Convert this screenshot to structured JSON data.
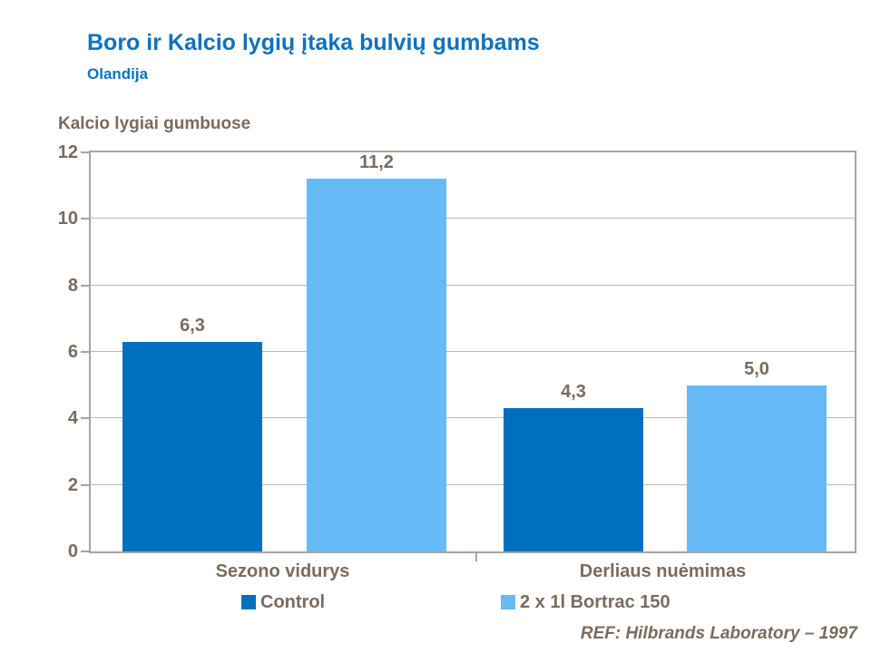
{
  "header": {
    "title": "Boro ir Kalcio lygių įtaka bulvių gumbams",
    "subtitle": "Olandija"
  },
  "chart_data": {
    "type": "bar",
    "title": "Kalcio lygiai gumbuose",
    "categories": [
      "Sezono vidurys",
      "Derliaus nuėmimas"
    ],
    "series": [
      {
        "name": "Control",
        "color": "#0070BE",
        "values": [
          6.3,
          4.3
        ],
        "labels": [
          "6,3",
          "4,3"
        ]
      },
      {
        "name": "2 x 1l Bortrac 150",
        "color": "#66BBF7",
        "values": [
          11.2,
          5.0
        ],
        "labels": [
          "11,2",
          "5,0"
        ]
      }
    ],
    "ylim": [
      0,
      12
    ],
    "yticks": [
      0,
      2,
      4,
      6,
      8,
      10,
      12
    ],
    "grid": true,
    "legend_position": "bottom",
    "xlabel": "",
    "ylabel": "Kalcio lygiai gumbuose"
  },
  "footer": {
    "ref": "REF: Hilbrands Laboratory – 1997"
  },
  "colors": {
    "title_blue": "#0E72BE",
    "dark_bar": "#0070BE",
    "light_bar": "#66BBF7",
    "text_brown": "#7A6B5D",
    "axis_gray": "#A9A49C",
    "gridline_gray": "#BDB8B0"
  }
}
